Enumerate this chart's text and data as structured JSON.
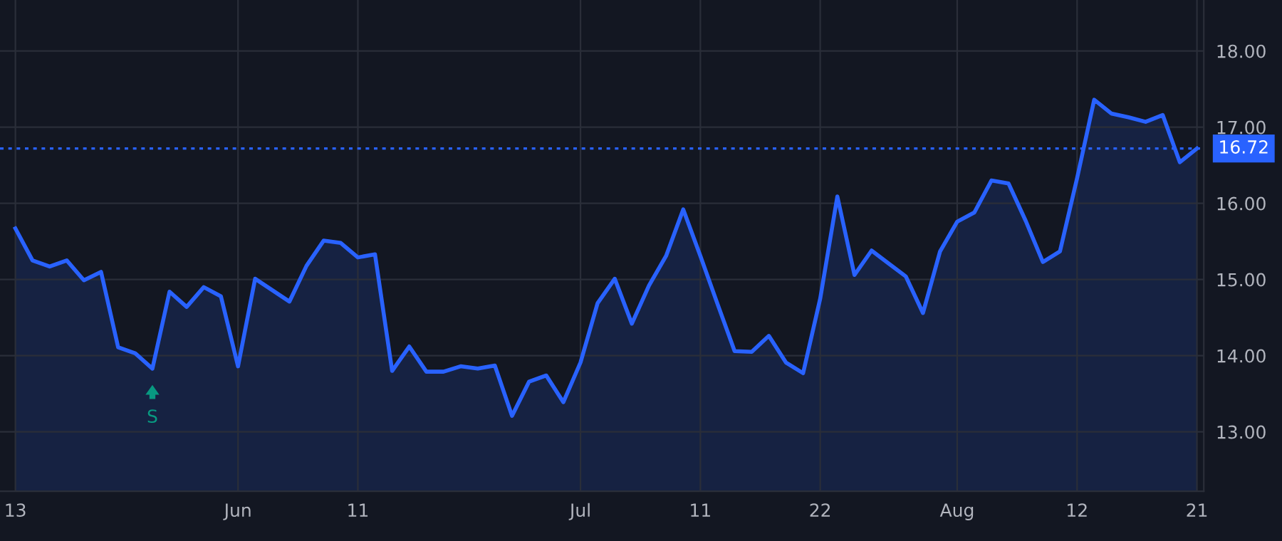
{
  "chart_data": {
    "type": "area",
    "categories": [
      "13",
      null,
      null,
      null,
      null,
      null,
      null,
      null,
      null,
      null,
      null,
      null,
      null,
      "Jun",
      null,
      null,
      null,
      null,
      null,
      null,
      "11",
      null,
      null,
      null,
      null,
      null,
      null,
      null,
      null,
      null,
      null,
      null,
      null,
      "Jul",
      null,
      null,
      null,
      null,
      null,
      null,
      "11",
      null,
      null,
      null,
      null,
      null,
      null,
      "22",
      null,
      null,
      null,
      null,
      null,
      null,
      null,
      "Aug",
      null,
      null,
      null,
      null,
      null,
      null,
      "12",
      null,
      null,
      null,
      null,
      null,
      null,
      "21"
    ],
    "series": [
      {
        "color": "#2962ff",
        "values": [
          15.67,
          15.25,
          15.17,
          15.25,
          14.99,
          15.1,
          14.11,
          14.03,
          13.83,
          14.84,
          14.64,
          14.9,
          14.78,
          13.86,
          15.01,
          14.86,
          14.71,
          15.18,
          15.51,
          15.48,
          15.29,
          15.33,
          13.8,
          14.12,
          13.79,
          13.79,
          13.86,
          13.83,
          13.87,
          13.21,
          13.66,
          13.74,
          13.39,
          13.91,
          14.69,
          15.01,
          14.42,
          14.92,
          15.31,
          15.92,
          15.31,
          14.68,
          14.06,
          14.05,
          14.26,
          13.91,
          13.77,
          14.75,
          16.09,
          15.06,
          15.38,
          15.21,
          15.04,
          14.56,
          15.37,
          15.76,
          15.88,
          16.3,
          16.26,
          15.77,
          15.23,
          15.37,
          16.33,
          17.36,
          17.18,
          17.13,
          17.07,
          17.16,
          16.54,
          16.72
        ]
      }
    ],
    "ylim": [
      12.22,
      18.67
    ],
    "yticks": [
      {
        "value": 13,
        "label": "13.00"
      },
      {
        "value": 14,
        "label": "14.00"
      },
      {
        "value": 15,
        "label": "15.00"
      },
      {
        "value": 16,
        "label": "16.00"
      },
      {
        "value": 17,
        "label": "17.00"
      },
      {
        "value": 18,
        "label": "18.00"
      }
    ],
    "ref_lines": [
      {
        "axis": "y",
        "value": 16.72,
        "label": "16.72",
        "color": "#2962ff",
        "line_style": "dotted"
      }
    ],
    "annotations": [
      {
        "text": "S",
        "y": 13.83
      }
    ],
    "grid": true,
    "legend": false
  }
}
